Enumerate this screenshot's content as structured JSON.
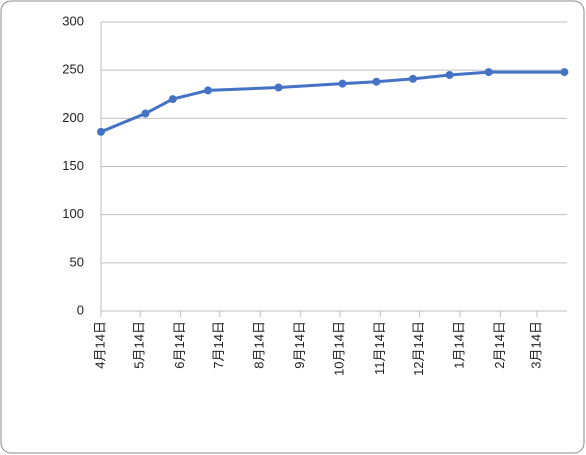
{
  "chart_data": {
    "type": "line",
    "x": [
      0,
      34,
      55,
      82,
      136,
      185,
      211,
      239,
      267,
      297,
      355
    ],
    "series": [
      {
        "color": "#4472c4",
        "values": [
          186,
          205,
          220,
          229,
          232,
          236,
          238,
          241,
          245,
          248,
          248
        ]
      }
    ],
    "xlim": [
      0,
      357
    ],
    "xticks": [
      {
        "value": 0,
        "label": "4月14日"
      },
      {
        "value": 30,
        "label": "5月14日"
      },
      {
        "value": 61,
        "label": "6月14日"
      },
      {
        "value": 91,
        "label": "7月14日"
      },
      {
        "value": 122,
        "label": "8月14日"
      },
      {
        "value": 153,
        "label": "9月14日"
      },
      {
        "value": 183,
        "label": "10月14日"
      },
      {
        "value": 214,
        "label": "11月14日"
      },
      {
        "value": 244,
        "label": "12月14日"
      },
      {
        "value": 275,
        "label": "1月14日"
      },
      {
        "value": 306,
        "label": "2月14日"
      },
      {
        "value": 334,
        "label": "3月14日"
      }
    ],
    "ylim": [
      0,
      300
    ],
    "yticks": [
      0,
      50,
      100,
      150,
      200,
      250,
      300
    ],
    "grid": true
  }
}
